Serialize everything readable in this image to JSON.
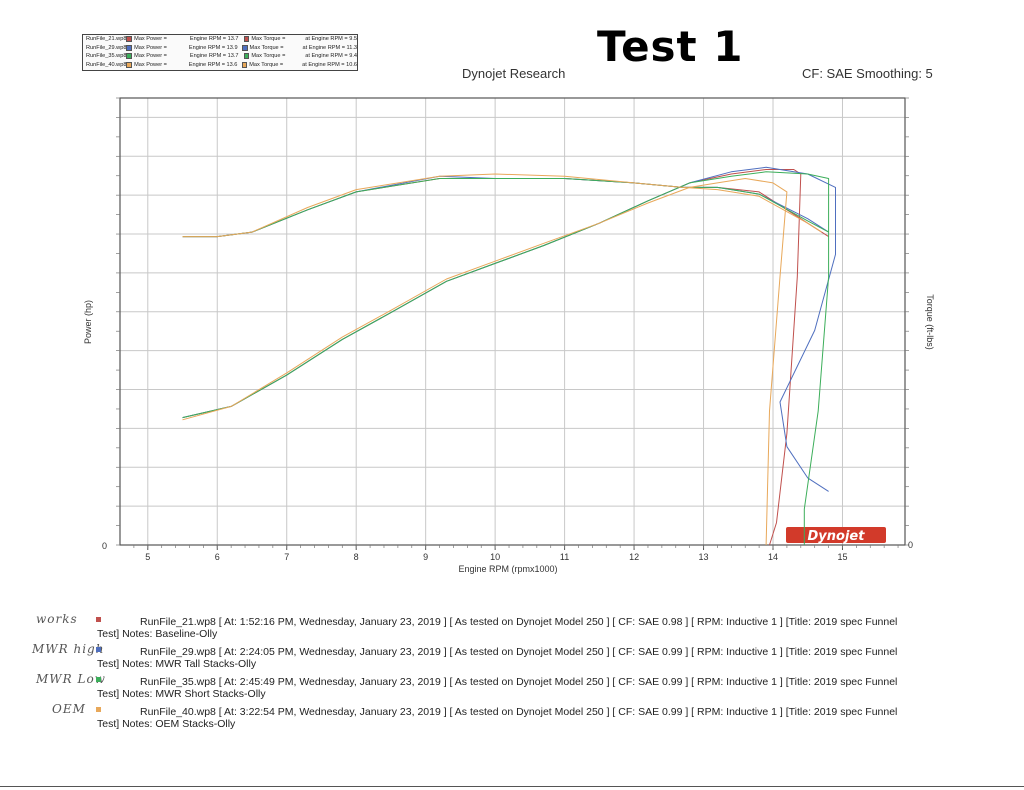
{
  "legend": {
    "rows": [
      {
        "file": "RunFile_21.wp8",
        "color": "#c0504d",
        "power_label": "Max Power =",
        "rpm_label": "Engine RPM = 13.7",
        "torque_label": "Max Torque =",
        "torque_rpm_label": "at Engine RPM = 9.5"
      },
      {
        "file": "RunFile_29.wp8",
        "color": "#4f6fbf",
        "power_label": "Max Power =",
        "rpm_label": "Engine RPM = 13.9",
        "torque_label": "Max Torque =",
        "torque_rpm_label": "at Engine RPM = 11.3"
      },
      {
        "file": "RunFile_35.wp8",
        "color": "#3cae5a",
        "power_label": "Max Power =",
        "rpm_label": "Engine RPM = 13.7",
        "torque_label": "Max Torque =",
        "torque_rpm_label": "at Engine RPM = 9.4"
      },
      {
        "file": "RunFile_40.wp8",
        "color": "#e8a85a",
        "power_label": "Max Power =",
        "rpm_label": "Engine RPM = 13.6",
        "torque_label": "Max Torque =",
        "torque_rpm_label": "at Engine RPM = 10.6"
      }
    ]
  },
  "test_title": "Test 1",
  "header": {
    "brand": "Dynojet Research",
    "cf": "CF: SAE Smoothing: 5"
  },
  "chart_data": {
    "type": "line",
    "xlabel": "Engine RPM (rpmx1000)",
    "ylabel_left": "Power (hp)",
    "ylabel_right": "Torque (ft-lbs)",
    "xlim": [
      4.6,
      15.9
    ],
    "x_ticks": [
      5,
      6,
      7,
      8,
      9,
      10,
      11,
      12,
      13,
      14,
      15
    ],
    "y_left_ticks": [
      "0"
    ],
    "y_right_ticks": [
      "0"
    ],
    "grid": true,
    "watermark": "Dynojet",
    "series": [
      {
        "name": "RunFile_21.wp8",
        "color": "#c0504d",
        "power": [
          [
            5.5,
            28.5
          ],
          [
            6.2,
            31
          ],
          [
            7,
            38
          ],
          [
            7.8,
            46
          ],
          [
            8.5,
            52
          ],
          [
            9.3,
            59
          ],
          [
            10,
            63
          ],
          [
            10.7,
            67
          ],
          [
            11.5,
            72
          ],
          [
            12.2,
            77
          ],
          [
            12.8,
            81
          ],
          [
            13.4,
            83
          ],
          [
            13.9,
            84
          ],
          [
            14.3,
            84
          ],
          [
            14.4,
            83
          ],
          [
            14.35,
            60
          ],
          [
            14.2,
            25
          ],
          [
            14.05,
            5
          ],
          [
            13.95,
            0
          ]
        ],
        "torque": [
          [
            5.5,
            69
          ],
          [
            6,
            69
          ],
          [
            6.5,
            70
          ],
          [
            7.3,
            75
          ],
          [
            8,
            79
          ],
          [
            9.2,
            82
          ],
          [
            10,
            82
          ],
          [
            11,
            82
          ],
          [
            12,
            81
          ],
          [
            12.7,
            80
          ],
          [
            13.2,
            80
          ],
          [
            13.8,
            79
          ],
          [
            14.5,
            72
          ],
          [
            14.8,
            69
          ]
        ]
      },
      {
        "name": "RunFile_29.wp8",
        "color": "#4f6fbf",
        "power": [
          [
            5.5,
            28.5
          ],
          [
            6.2,
            31
          ],
          [
            7,
            38
          ],
          [
            7.8,
            46
          ],
          [
            8.5,
            52
          ],
          [
            9.3,
            59
          ],
          [
            10,
            63
          ],
          [
            10.7,
            67
          ],
          [
            11.5,
            72
          ],
          [
            12.2,
            77
          ],
          [
            12.8,
            81
          ],
          [
            13.4,
            83.5
          ],
          [
            13.9,
            84.5
          ],
          [
            14.5,
            83
          ],
          [
            14.9,
            80
          ],
          [
            14.9,
            65
          ],
          [
            14.6,
            48
          ],
          [
            14.1,
            32
          ],
          [
            14.2,
            22
          ],
          [
            14.5,
            15
          ],
          [
            14.8,
            12
          ]
        ],
        "torque": [
          [
            5.5,
            69
          ],
          [
            6,
            69
          ],
          [
            6.5,
            70
          ],
          [
            7.3,
            75
          ],
          [
            8,
            79
          ],
          [
            9.2,
            82.5
          ],
          [
            10,
            82
          ],
          [
            11,
            82
          ],
          [
            12,
            81
          ],
          [
            12.7,
            80
          ],
          [
            13.2,
            80
          ],
          [
            13.8,
            78.5
          ],
          [
            14.5,
            73
          ],
          [
            14.8,
            70
          ]
        ]
      },
      {
        "name": "RunFile_35.wp8",
        "color": "#3cae5a",
        "power": [
          [
            5.5,
            28.5
          ],
          [
            6.2,
            31
          ],
          [
            7,
            38
          ],
          [
            7.8,
            46
          ],
          [
            8.5,
            52
          ],
          [
            9.3,
            59
          ],
          [
            10,
            63
          ],
          [
            10.7,
            67
          ],
          [
            11.5,
            72
          ],
          [
            12.2,
            77
          ],
          [
            12.8,
            81
          ],
          [
            13.4,
            82.5
          ],
          [
            13.9,
            83.5
          ],
          [
            14.5,
            83
          ],
          [
            14.8,
            82
          ],
          [
            14.8,
            60
          ],
          [
            14.65,
            30
          ],
          [
            14.45,
            8
          ],
          [
            14.45,
            0
          ]
        ],
        "torque": [
          [
            5.5,
            69
          ],
          [
            6,
            69
          ],
          [
            6.5,
            70
          ],
          [
            7.3,
            75
          ],
          [
            8,
            79
          ],
          [
            9.2,
            82
          ],
          [
            10,
            82
          ],
          [
            11,
            82
          ],
          [
            12,
            81
          ],
          [
            12.7,
            80
          ],
          [
            13.2,
            80
          ],
          [
            13.8,
            78.5
          ],
          [
            14.5,
            72.5
          ],
          [
            14.8,
            70
          ]
        ]
      },
      {
        "name": "RunFile_40.wp8",
        "color": "#e8a85a",
        "power": [
          [
            5.5,
            28
          ],
          [
            6.2,
            31
          ],
          [
            7,
            38.5
          ],
          [
            7.8,
            46.5
          ],
          [
            8.5,
            52.5
          ],
          [
            9.3,
            59.5
          ],
          [
            10,
            63.5
          ],
          [
            10.7,
            67.5
          ],
          [
            11.5,
            72
          ],
          [
            12.2,
            76.5
          ],
          [
            12.8,
            80
          ],
          [
            13.2,
            81
          ],
          [
            13.6,
            82
          ],
          [
            14,
            81
          ],
          [
            14.2,
            79
          ],
          [
            14.1,
            60
          ],
          [
            13.95,
            30
          ],
          [
            13.9,
            0
          ]
        ],
        "torque": [
          [
            5.5,
            69
          ],
          [
            6,
            69
          ],
          [
            6.5,
            70
          ],
          [
            7.3,
            75.5
          ],
          [
            8,
            79.5
          ],
          [
            9.2,
            82.5
          ],
          [
            10,
            83
          ],
          [
            11,
            82.5
          ],
          [
            12,
            81
          ],
          [
            12.7,
            80
          ],
          [
            13.2,
            79.5
          ],
          [
            13.8,
            78
          ],
          [
            14.5,
            72
          ],
          [
            14.7,
            70
          ]
        ]
      }
    ]
  },
  "notes": [
    {
      "handwritten": "works",
      "color": "#c0504d",
      "line1": "RunFile_21.wp8 [ At: 1:52:16 PM, Wednesday, January 23, 2019 ] [ As tested on Dynojet Model 250 ] [ CF: SAE 0.98 ] [ RPM: Inductive 1 ] [Title: 2019 spec Funnel",
      "line2": "Test]  Notes: Baseline-Olly"
    },
    {
      "handwritten": "MWR high",
      "color": "#4f6fbf",
      "line1": "RunFile_29.wp8 [ At: 2:24:05 PM, Wednesday, January 23, 2019 ] [ As tested on Dynojet Model 250 ] [ CF: SAE 0.99 ] [ RPM: Inductive 1 ] [Title: 2019 spec Funnel",
      "line2": "Test]  Notes: MWR Tall Stacks-Olly"
    },
    {
      "handwritten": "MWR Low",
      "color": "#3cae5a",
      "line1": "RunFile_35.wp8 [ At: 2:45:49 PM, Wednesday, January 23, 2019 ] [ As tested on Dynojet Model 250 ] [ CF: SAE 0.99 ] [ RPM: Inductive 1 ] [Title: 2019 spec Funnel",
      "line2": "Test]  Notes: MWR Short Stacks-Olly"
    },
    {
      "handwritten": "OEM",
      "color": "#e8a85a",
      "line1": "RunFile_40.wp8 [ At: 3:22:54 PM, Wednesday, January 23, 2019 ] [ As tested on Dynojet Model 250 ] [ CF: SAE 0.99 ] [ RPM: Inductive 1 ] [Title: 2019 spec Funnel",
      "line2": "Test]  Notes: OEM Stacks-Olly"
    }
  ]
}
